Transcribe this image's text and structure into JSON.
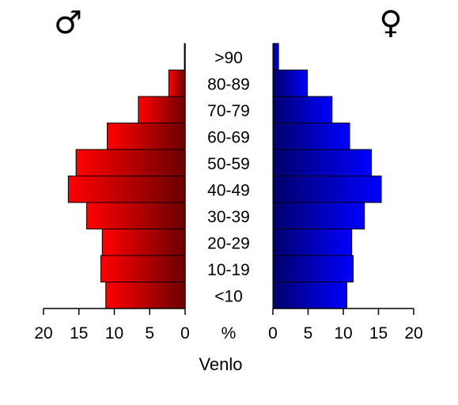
{
  "chart_data": {
    "type": "bar",
    "subtype": "population-pyramid",
    "title": "",
    "caption": "Venlo",
    "center_label": "%",
    "male_symbol": "♂",
    "female_symbol": "♀",
    "categories": [
      ">90",
      "80-89",
      "70-79",
      "60-69",
      "50-59",
      "40-49",
      "30-39",
      "20-29",
      "10-19",
      "<10"
    ],
    "series": [
      {
        "values": [
          0.1,
          2.3,
          6.6,
          11.0,
          15.4,
          16.5,
          13.9,
          11.7,
          11.9,
          11.2
        ],
        "color_outer": "#ff0000",
        "color_inner": "#6b0000"
      },
      {
        "values": [
          0.8,
          4.9,
          8.4,
          10.9,
          14.0,
          15.4,
          13.0,
          11.2,
          11.4,
          10.5
        ],
        "color_outer": "#0000ff",
        "color_inner": "#00006b"
      }
    ],
    "xlim": [
      0,
      20
    ],
    "xticks": [
      "20",
      "15",
      "10",
      "5",
      "0"
    ],
    "xticks_right": [
      "0",
      "5",
      "10",
      "15",
      "20"
    ],
    "grid": false,
    "legend": "none"
  }
}
